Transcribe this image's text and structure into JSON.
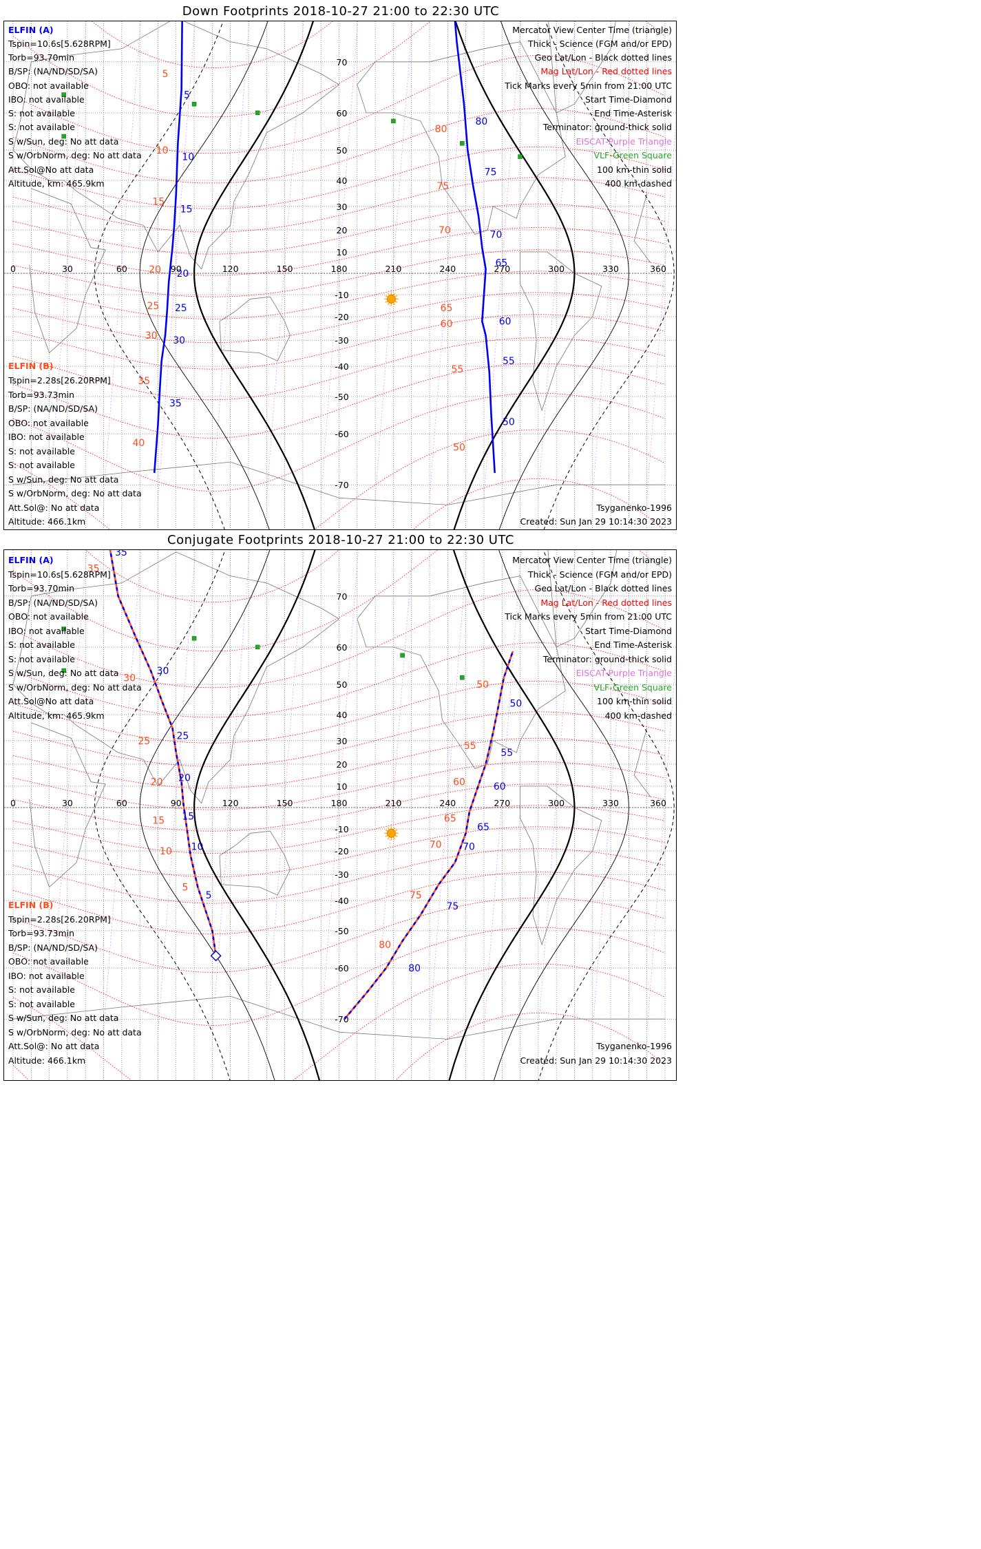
{
  "colors": {
    "elfin_a": "#0000ee",
    "elfin_b": "#ff4a1a",
    "mag_grid": "#ff0000",
    "geo_grid": "#000000",
    "eiscat": "#e070e0",
    "vlf": "#22aa22",
    "sun": "#ffa500"
  },
  "icons": [
    "sun-icon",
    "start-diamond-icon",
    "vlf-square-icon",
    "eiscat-triangle-icon"
  ],
  "lon_ticks": [
    "0",
    "30",
    "60",
    "90",
    "120",
    "150",
    "180",
    "210",
    "240",
    "270",
    "300",
    "330",
    "360"
  ],
  "lat_ticks_n": [
    "70",
    "60",
    "50",
    "40",
    "30",
    "20",
    "10"
  ],
  "lat_ticks_s": [
    "-10",
    "-20",
    "-30",
    "-40",
    "-50",
    "-60",
    "-70"
  ],
  "legend": {
    "l1": "Mercator View Center Time (triangle)",
    "l2": "Thick - Science (FGM and/or EPD)",
    "l3": "Geo Lat/Lon - Black dotted lines",
    "l4": "Mag Lat/Lon - Red dotted lines",
    "l5": "Tick Marks every 5min from 21:00 UTC",
    "l6": "Start Time-Diamond",
    "l7": "End Time-Asterisk",
    "l8": "Terminator: ground-thick solid",
    "l9": "EISCAT-Purple Triangle",
    "l10": "VLF-Green Square",
    "l11": "100 km-thin solid",
    "l12": "400 km-dashed"
  },
  "elfin_a": {
    "name": "ELFIN (A)",
    "tspin": "Tspin=10.6s[5.628RPM]",
    "torb": "Torb=93.70min",
    "bsp": "B/SP: (NA/ND/SD/SA)",
    "obo": "OBO: not available",
    "ibo": "IBO: not available",
    "s1": "S: not available",
    "s2": "S: not available",
    "sun": "S w/Sun, deg: No att data",
    "orb": "S w/OrbNorm, deg: No att data",
    "att": "Att.Sol@No att data",
    "alt": "Altitude, km: 465.9km"
  },
  "elfin_b": {
    "name": "ELFIN (B)",
    "tspin": "Tspin=2.28s[26.20RPM]",
    "torb": "Torb=93.73min",
    "bsp": "B/SP: (NA/ND/SD/SA)",
    "obo": "OBO: not available",
    "ibo": "IBO: not available",
    "s1": "S: not available",
    "s2": "S: not available",
    "sun": "S w/Sun, deg: No att data",
    "orb": "S w/OrbNorm, deg: No att data",
    "att": "Att.Sol@: No att data",
    "alt": "Altitude: 466.1km"
  },
  "model": "Tsyganenko-1996",
  "created": "Created: Sun Jan 29 10:14:30 2023",
  "panels": [
    {
      "title": "Down Footprints 2018-10-27 21:00 to 22:30 UTC",
      "track_a_west": [
        [
          94,
          84
        ],
        [
          93,
          65
        ],
        [
          91,
          52
        ],
        [
          90,
          35
        ],
        [
          89,
          22
        ],
        [
          88,
          12
        ],
        [
          86,
          -4
        ],
        [
          85,
          -18
        ],
        [
          84,
          -28
        ],
        [
          82,
          -38
        ],
        [
          81,
          -48
        ],
        [
          80,
          -58
        ],
        [
          78,
          -68
        ]
      ],
      "track_a_east": [
        [
          239,
          84
        ],
        [
          245,
          73
        ],
        [
          249,
          62
        ],
        [
          251,
          50
        ],
        [
          254,
          38
        ],
        [
          257,
          26
        ],
        [
          259,
          12
        ],
        [
          261,
          2
        ],
        [
          259,
          -22
        ],
        [
          261,
          -28
        ],
        [
          263,
          -42
        ],
        [
          264,
          -55
        ],
        [
          266,
          -68
        ]
      ],
      "ticks_a": [
        [
          "5",
          92,
          64
        ],
        [
          "10",
          91,
          48
        ],
        [
          "15",
          90,
          29
        ],
        [
          "20",
          88,
          0
        ],
        [
          "25",
          87,
          -16
        ],
        [
          "30",
          86,
          -30
        ],
        [
          "35",
          84,
          -52
        ],
        [
          "85",
          247,
          77
        ],
        [
          "80",
          253,
          58
        ],
        [
          "75",
          258,
          43
        ],
        [
          "70",
          261,
          18
        ],
        [
          "65",
          264,
          5
        ],
        [
          "60",
          266,
          -22
        ],
        [
          "55",
          268,
          -38
        ],
        [
          "50",
          268,
          -57
        ]
      ],
      "ticks_b": [
        [
          "5",
          88,
          68
        ],
        [
          "10",
          88,
          50
        ],
        [
          "15",
          86,
          32
        ],
        [
          "20",
          84,
          2
        ],
        [
          "25",
          83,
          -15
        ],
        [
          "30",
          82,
          -28
        ],
        [
          "35",
          78,
          -45
        ],
        [
          "40",
          75,
          -62
        ],
        [
          "85",
          242,
          79
        ],
        [
          "80",
          242,
          56
        ],
        [
          "75",
          243,
          38
        ],
        [
          "70",
          244,
          20
        ],
        [
          "65",
          245,
          -16
        ],
        [
          "60",
          245,
          -23
        ],
        [
          "55",
          251,
          -41
        ],
        [
          "50",
          252,
          -63
        ]
      ],
      "start": [
        [
          108,
          88
        ],
        [
          104,
          78
        ]
      ]
    },
    {
      "title": "Conjugate Footprints 2018-10-27 21:00 to 22:30 UTC",
      "track_a_west": [
        [
          52,
          78
        ],
        [
          58,
          70
        ],
        [
          68,
          62
        ],
        [
          76,
          54
        ],
        [
          82,
          45
        ],
        [
          88,
          35
        ],
        [
          90,
          25
        ],
        [
          93,
          12
        ],
        [
          94,
          2
        ],
        [
          96,
          -10
        ],
        [
          98,
          -22
        ],
        [
          102,
          -35
        ],
        [
          110,
          -50
        ],
        [
          112,
          -57
        ]
      ],
      "track_a_east": [
        [
          183,
          -70
        ],
        [
          196,
          -65
        ],
        [
          206,
          -60
        ],
        [
          215,
          -53
        ],
        [
          225,
          -45
        ],
        [
          235,
          -34
        ],
        [
          244,
          -25
        ],
        [
          250,
          -12
        ],
        [
          252,
          -2
        ],
        [
          256,
          8
        ],
        [
          261,
          20
        ],
        [
          265,
          33
        ],
        [
          268,
          43
        ],
        [
          271,
          52
        ],
        [
          276,
          59
        ]
      ],
      "ticks_a": [
        [
          "35",
          54,
          76
        ],
        [
          "30",
          77,
          54
        ],
        [
          "25",
          88,
          32
        ],
        [
          "20",
          89,
          14
        ],
        [
          "15",
          91,
          -4
        ],
        [
          "10",
          96,
          -18
        ],
        [
          "5",
          104,
          -38
        ],
        [
          "80",
          216,
          -60
        ],
        [
          "75",
          237,
          -42
        ],
        [
          "70",
          246,
          -18
        ],
        [
          "65",
          254,
          -9
        ],
        [
          "60",
          263,
          10
        ],
        [
          "55",
          267,
          25
        ],
        [
          "50",
          272,
          44
        ]
      ],
      "ticks_b": [
        [
          "35",
          50,
          74
        ],
        [
          "30",
          70,
          52
        ],
        [
          "25",
          78,
          30
        ],
        [
          "20",
          85,
          12
        ],
        [
          "15",
          86,
          -6
        ],
        [
          "10",
          90,
          -20
        ],
        [
          "5",
          99,
          -35
        ],
        [
          "80",
          211,
          -54
        ],
        [
          "75",
          228,
          -38
        ],
        [
          "70",
          239,
          -17
        ],
        [
          "65",
          247,
          -5
        ],
        [
          "60",
          252,
          12
        ],
        [
          "55",
          258,
          28
        ],
        [
          "50",
          265,
          50
        ]
      ],
      "start": [
        [
          112,
          -57
        ]
      ]
    }
  ]
}
